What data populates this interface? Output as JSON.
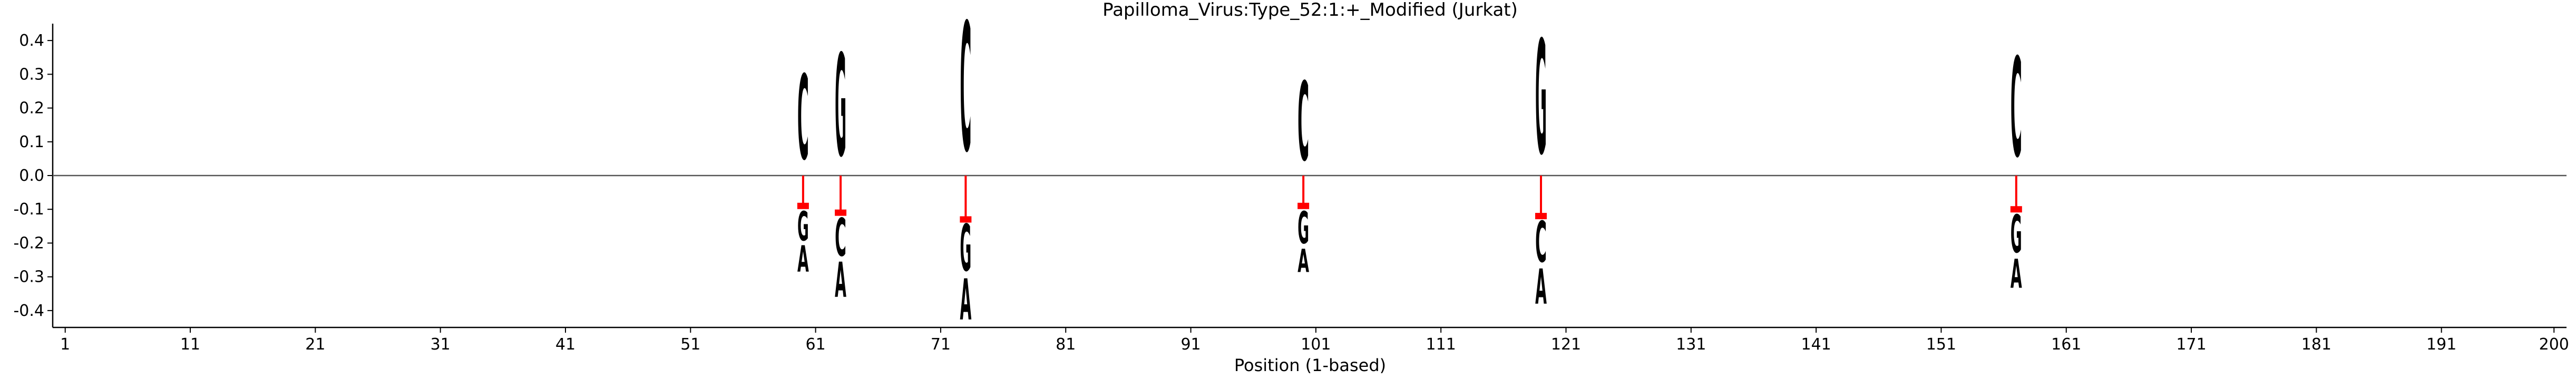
{
  "chart_data": {
    "type": "sequence-logo",
    "title": "Papilloma_Virus:Type_52:1:+_Modified  (Jurkat)",
    "xlabel": "Position (1-based)",
    "ylabel": "",
    "xlim": [
      0,
      201
    ],
    "ylim": [
      -0.45,
      0.45
    ],
    "x_ticks": [
      1,
      11,
      21,
      31,
      41,
      51,
      61,
      71,
      81,
      91,
      101,
      111,
      121,
      131,
      141,
      151,
      161,
      171,
      181,
      191,
      200
    ],
    "y_ticks": [
      -0.4,
      -0.3,
      -0.2,
      -0.1,
      0.0,
      0.1,
      0.2,
      0.3,
      0.4
    ],
    "baseline": 0.0,
    "colors": {
      "A": "#008000",
      "C": "#0000ff",
      "G": "#ffa500",
      "T": "#ff0000",
      "error": "#ff0000",
      "baseline": "#555555"
    },
    "positions": [
      {
        "x": 60,
        "above": [
          {
            "base": "C",
            "height": 0.29
          }
        ],
        "below": [
          {
            "base": "G",
            "height": 0.1
          },
          {
            "base": "A",
            "height": 0.09
          }
        ],
        "error_bar": -0.09
      },
      {
        "x": 63,
        "above": [
          {
            "base": "G",
            "height": 0.35
          }
        ],
        "below": [
          {
            "base": "C",
            "height": 0.13
          },
          {
            "base": "A",
            "height": 0.12
          }
        ],
        "error_bar": -0.11
      },
      {
        "x": 73,
        "above": [
          {
            "base": "C",
            "height": 0.44
          }
        ],
        "below": [
          {
            "base": "G",
            "height": 0.16
          },
          {
            "base": "A",
            "height": 0.14
          }
        ],
        "error_bar": -0.13
      },
      {
        "x": 100,
        "above": [
          {
            "base": "C",
            "height": 0.27
          }
        ],
        "below": [
          {
            "base": "G",
            "height": 0.11
          },
          {
            "base": "A",
            "height": 0.08
          }
        ],
        "error_bar": -0.09
      },
      {
        "x": 119,
        "above": [
          {
            "base": "G",
            "height": 0.39
          }
        ],
        "below": [
          {
            "base": "C",
            "height": 0.14
          },
          {
            "base": "A",
            "height": 0.12
          }
        ],
        "error_bar": -0.12
      },
      {
        "x": 157,
        "above": [
          {
            "base": "C",
            "height": 0.34
          }
        ],
        "below": [
          {
            "base": "G",
            "height": 0.13
          },
          {
            "base": "A",
            "height": 0.1
          }
        ],
        "error_bar": -0.1
      }
    ]
  }
}
